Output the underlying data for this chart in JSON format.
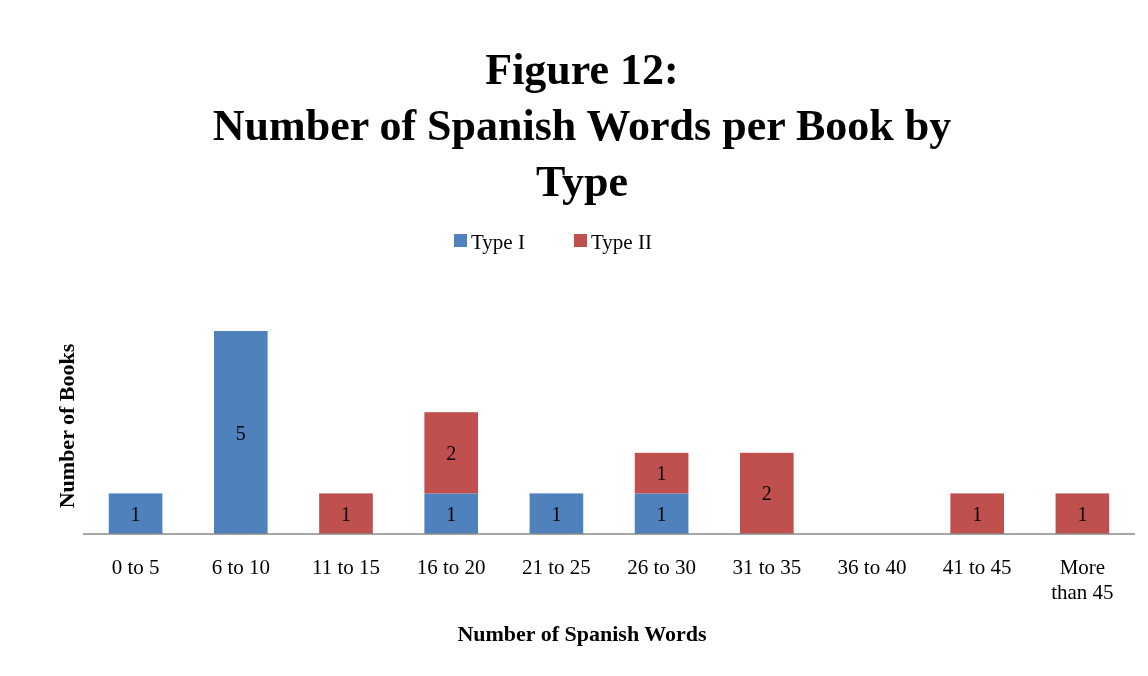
{
  "chart_data": {
    "type": "bar",
    "title": "Figure 12:\nNumber of Spanish Words per Book by\nType",
    "xlabel": "Number of Spanish Words",
    "ylabel": "Number of Books",
    "categories": [
      "0 to 5",
      "6 to 10",
      "11 to 15",
      "16 to 20",
      "21 to 25",
      "26 to 30",
      "31 to 35",
      "36 to 40",
      "41 to 45",
      "More than 45"
    ],
    "series": [
      {
        "name": "Type I",
        "color": "#4f81bd",
        "values": [
          1,
          5,
          null,
          1,
          1,
          1,
          null,
          null,
          null,
          null
        ]
      },
      {
        "name": "Type II",
        "color": "#c0504d",
        "values": [
          null,
          null,
          1,
          2,
          null,
          1,
          2,
          null,
          1,
          1
        ]
      }
    ],
    "stacked": true,
    "data_labels": true,
    "legend": "top",
    "grid": false
  }
}
